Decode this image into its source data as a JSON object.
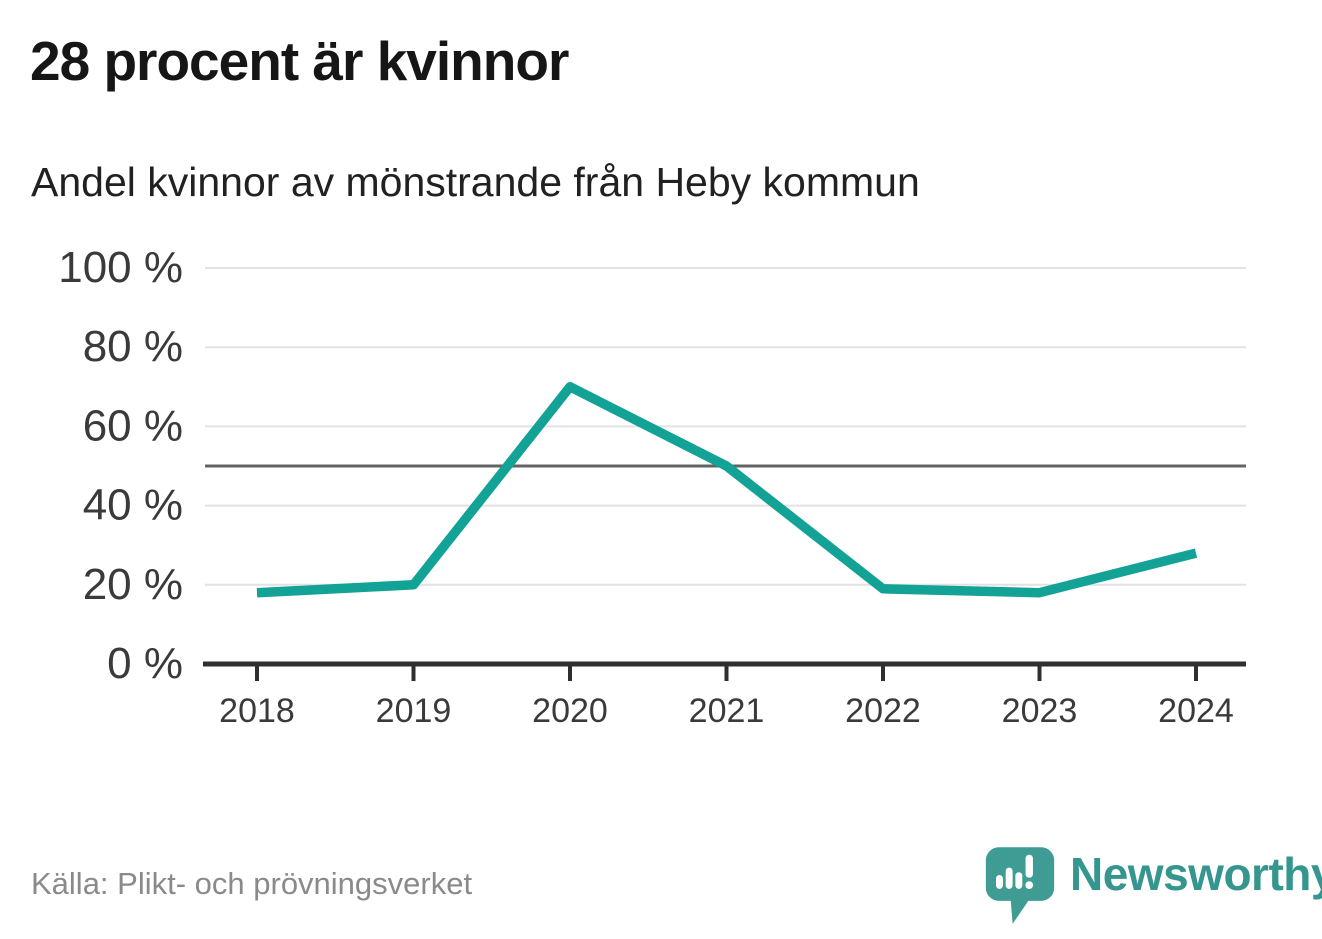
{
  "page": {
    "title": "28 procent är kvinnor",
    "subtitle": "Andel kvinnor av mönstrande från Heby kommun",
    "source": "Källa: Plikt- och prövningsverket"
  },
  "branding": {
    "logo_text": "Newsworthy",
    "logo_icon": "newsworthy-speech-bubble-chart-icon",
    "brand_color": "#3e9c95",
    "brand_text_color": "#35968f"
  },
  "chart_data": {
    "type": "line",
    "title": "28 procent är kvinnor",
    "subtitle": "Andel kvinnor av mönstrande från Heby kommun",
    "categories": [
      "2018",
      "2019",
      "2020",
      "2021",
      "2022",
      "2023",
      "2024"
    ],
    "series": [
      {
        "name": "Andel kvinnor av mönstrande",
        "values": [
          18,
          20,
          70,
          50,
          19,
          18,
          28
        ]
      }
    ],
    "unit": "%",
    "xlabel": "",
    "ylabel": "",
    "ylim": [
      0,
      100
    ],
    "yticks": [
      0,
      20,
      40,
      60,
      80,
      100
    ],
    "ytick_labels": [
      "0 %",
      "20 %",
      "40 %",
      "60 %",
      "80 %",
      "100 %"
    ],
    "reference_line": 50,
    "grid": true,
    "legend": "none",
    "line_color": "#12a296",
    "gridline_color": "#e2e2e2",
    "reference_line_color": "#636363",
    "axis_color": "#2f2f2f"
  }
}
